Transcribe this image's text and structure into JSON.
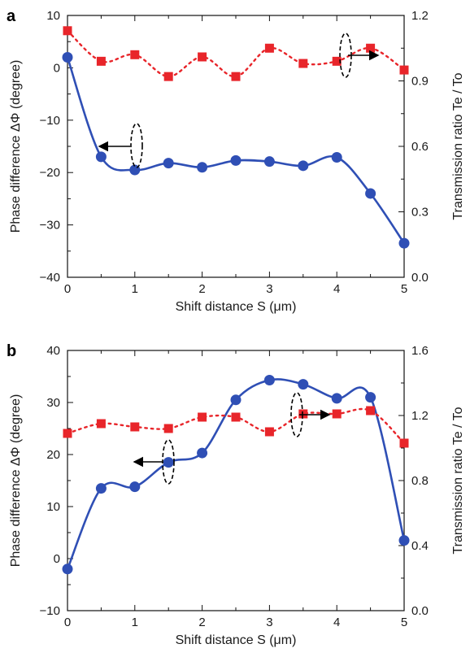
{
  "chart_data": [
    {
      "panel_label": "a",
      "type": "scatter",
      "xlabel": "Shift distance S (μm)",
      "ylabel_left": "Phase difference ΔΦ (degree)",
      "ylabel_right": "Transmission ratio Te / To",
      "xlim": [
        0,
        5
      ],
      "ylim_left": [
        -40,
        10
      ],
      "ylim_right": [
        0.0,
        1.2
      ],
      "x_ticks": [
        "0",
        "1",
        "2",
        "3",
        "4",
        "5"
      ],
      "y_left_ticks": [
        "10",
        "0",
        "−10",
        "−20",
        "−30",
        "−40"
      ],
      "y_right_ticks": [
        "1.2",
        "0.9",
        "0.6",
        "0.3",
        "0.0"
      ],
      "grid": false,
      "series": [
        {
          "axis": "left",
          "marker": "circle",
          "line": "solid",
          "color": "#2f4fb5",
          "x": [
            0,
            0.5,
            1,
            1.5,
            2,
            2.5,
            3,
            3.5,
            4,
            4.5,
            5
          ],
          "y": [
            2,
            -17,
            -19.5,
            -18.2,
            -19,
            -17.7,
            -17.9,
            -18.7,
            -17.1,
            -24,
            -33.5
          ]
        },
        {
          "axis": "right",
          "marker": "square",
          "line": "dotted",
          "color": "#e8252a",
          "x": [
            0,
            0.5,
            1,
            1.5,
            2,
            2.5,
            3,
            3.5,
            4,
            4.5,
            5
          ],
          "y": [
            1.13,
            0.99,
            1.02,
            0.92,
            1.01,
            0.92,
            1.05,
            0.98,
            0.99,
            1.05,
            0.95
          ]
        }
      ]
    },
    {
      "panel_label": "b",
      "type": "scatter",
      "xlabel": "Shift distance S (μm)",
      "ylabel_left": "Phase difference ΔΦ (degree)",
      "ylabel_right": "Transmission ratio Te / To",
      "xlim": [
        0,
        5
      ],
      "ylim_left": [
        -10,
        40
      ],
      "ylim_right": [
        0.0,
        1.6
      ],
      "x_ticks": [
        "0",
        "1",
        "2",
        "3",
        "4",
        "5"
      ],
      "y_left_ticks": [
        "40",
        "30",
        "20",
        "10",
        "0",
        "−10"
      ],
      "y_right_ticks": [
        "1.6",
        "1.2",
        "0.8",
        "0.4",
        "0.0"
      ],
      "grid": false,
      "series": [
        {
          "axis": "left",
          "marker": "circle",
          "line": "solid",
          "color": "#2f4fb5",
          "x": [
            0,
            0.5,
            1,
            1.5,
            2,
            2.5,
            3,
            3.5,
            4,
            4.5,
            5
          ],
          "y": [
            -2,
            13.5,
            13.8,
            18.5,
            20.3,
            30.5,
            34.3,
            33.5,
            30.8,
            31,
            3.5
          ]
        },
        {
          "axis": "right",
          "marker": "square",
          "line": "dotted",
          "color": "#e8252a",
          "x": [
            0,
            0.5,
            1,
            1.5,
            2,
            2.5,
            3,
            3.5,
            4,
            4.5,
            5
          ],
          "y": [
            1.09,
            1.15,
            1.13,
            1.12,
            1.19,
            1.19,
            1.1,
            1.21,
            1.21,
            1.23,
            1.03
          ]
        }
      ]
    }
  ]
}
